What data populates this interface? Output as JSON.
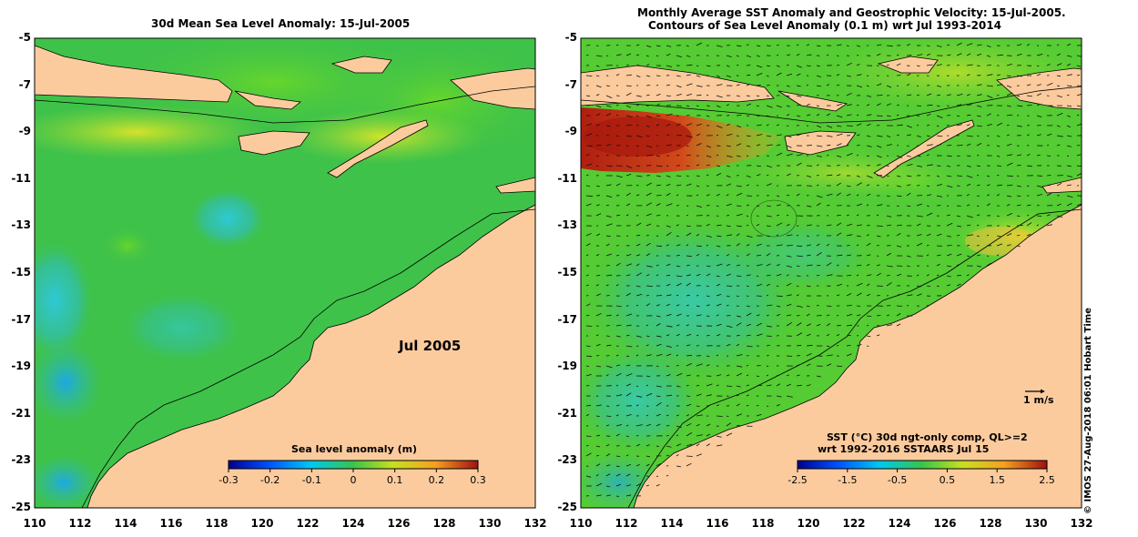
{
  "left_panel": {
    "title": "30d Mean Sea Level Anomaly: 15-Jul-2005",
    "date_label": "Jul 2005",
    "colorbar": {
      "title": "Sea level anomaly (m)",
      "ticks": [
        "-0.3",
        "-0.2",
        "-0.1",
        "0",
        "0.1",
        "0.2",
        "0.3"
      ],
      "range": [
        -0.3,
        0.3
      ]
    }
  },
  "right_panel": {
    "title_line1": "Monthly Average SST Anomaly  and Geostrophic Velocity: 15-Jul-2005.",
    "title_line2": "Contours of Sea Level Anomaly (0.1 m) wrt Jul 1993-2014",
    "vector_scale_label": "1 m/s",
    "colorbar": {
      "title_line1": "SST (°C) 30d ngt-only comp, QL>=2",
      "title_line2": "wrt 1992-2016 SSTAARS Jul 15",
      "ticks": [
        "-2.5",
        "-1.5",
        "-0.5",
        "0.5",
        "1.5",
        "2.5"
      ],
      "range": [
        -2.5,
        2.5
      ]
    }
  },
  "axes": {
    "lat_ticks": [
      "-5",
      "-7",
      "-9",
      "-11",
      "-13",
      "-15",
      "-17",
      "-19",
      "-21",
      "-23",
      "-25"
    ],
    "lon_ticks": [
      "110",
      "112",
      "114",
      "116",
      "118",
      "120",
      "122",
      "124",
      "126",
      "128",
      "130",
      "132"
    ],
    "lat_range": [
      -25,
      -5
    ],
    "lon_range": [
      110,
      132
    ]
  },
  "credit": "© IMOS 27-Aug-2018 06:01 Hobart Time",
  "colors": {
    "land": "#fbcb9e",
    "ocean_mid": "#3fc24a",
    "ocean_green": "#55cc33",
    "ocean_cyan": "#33c0a8",
    "warm_anomaly": "#cfe12a",
    "hot_anomaly": "#b32010"
  }
}
